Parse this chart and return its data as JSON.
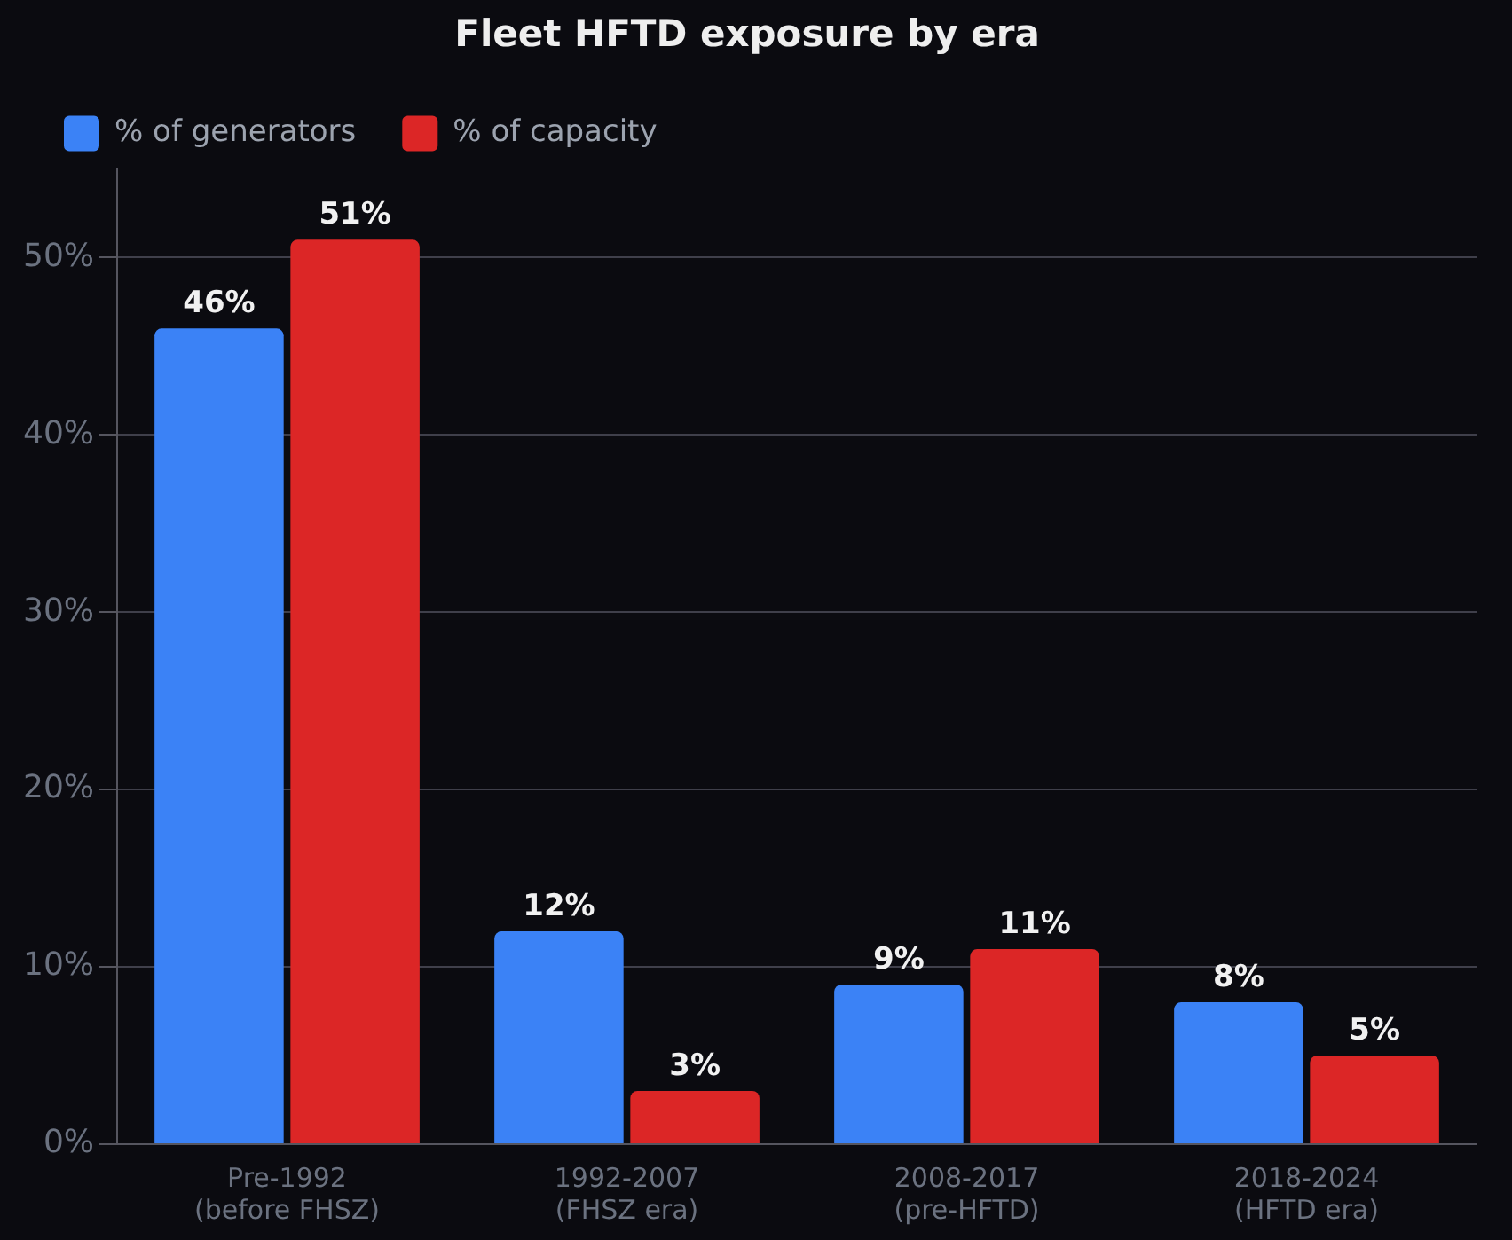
{
  "chart_data": {
    "type": "bar",
    "title": "Fleet HFTD exposure by era",
    "categories": [
      "Pre-1992\n(before FHSZ)",
      "1992-2007\n(FHSZ era)",
      "2008-2017\n(pre-HFTD)",
      "2018-2024\n(HFTD era)"
    ],
    "series": [
      {
        "name": "% of generators",
        "color": "#3b82f6",
        "values": [
          46,
          12,
          9,
          8
        ],
        "value_labels": [
          "46%",
          "12%",
          "9%",
          "8%"
        ]
      },
      {
        "name": "% of capacity",
        "color": "#dc2626",
        "values": [
          51,
          3,
          11,
          5
        ],
        "value_labels": [
          "51%",
          "3%",
          "11%",
          "5%"
        ]
      }
    ],
    "ylim": [
      0,
      55
    ],
    "yticks": [
      {
        "value": 0,
        "label": "0%"
      },
      {
        "value": 10,
        "label": "10%"
      },
      {
        "value": 20,
        "label": "20%"
      },
      {
        "value": 30,
        "label": "30%"
      },
      {
        "value": 40,
        "label": "40%"
      },
      {
        "value": 50,
        "label": "50%"
      }
    ],
    "grid": "y",
    "legend": "top left"
  }
}
